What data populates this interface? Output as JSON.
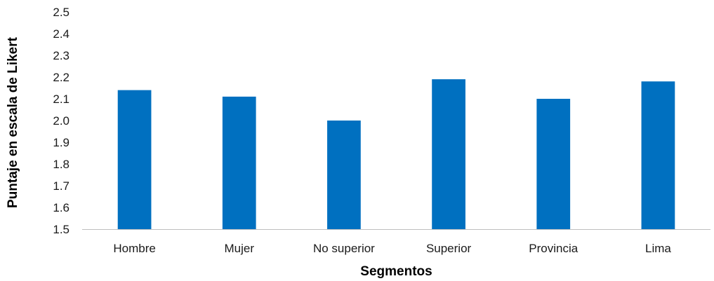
{
  "chart_data": {
    "type": "bar",
    "title": "",
    "xlabel": "Segmentos",
    "ylabel": "Puntaje en escala de Likert",
    "categories": [
      "Hombre",
      "Mujer",
      "No superior",
      "Superior",
      "Provincia",
      "Lima"
    ],
    "values": [
      2.14,
      2.11,
      2.0,
      2.19,
      2.1,
      2.18
    ],
    "ylim": [
      1.5,
      2.5
    ],
    "yticks": [
      "1.5",
      "1.6",
      "1.7",
      "1.8",
      "1.9",
      "2.0",
      "2.1",
      "2.2",
      "2.3",
      "2.4",
      "2.5"
    ],
    "grid": false,
    "legend": "none",
    "bar_color": "#0070c0",
    "axis_color": "#bfbfbf"
  }
}
